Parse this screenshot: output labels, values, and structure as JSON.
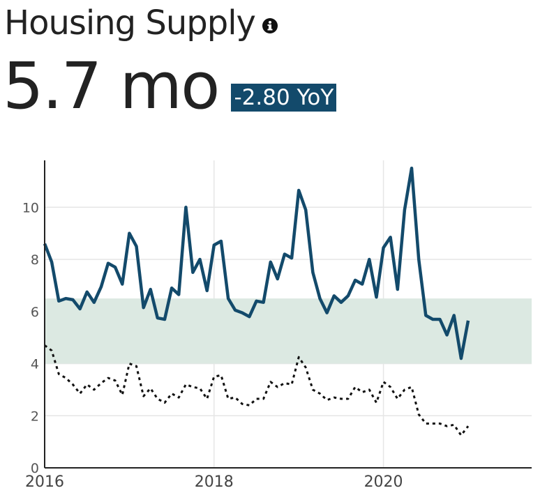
{
  "header": {
    "title": "Housing Supply",
    "info_icon": "info-circle-icon",
    "value": "5.7 mo",
    "change_badge": "-2.80 YoY"
  },
  "colors": {
    "primary_series": "#134a6b",
    "band_fill": "#dce9e2",
    "secondary_series": "#111111",
    "grid": "#e6e6e6",
    "badge_bg": "#134a6b"
  },
  "chart_data": {
    "type": "line",
    "x_range": [
      2016.0,
      2021.75
    ],
    "ylim": [
      0,
      11.8
    ],
    "y_ticks": [
      0,
      2,
      4,
      6,
      8,
      10
    ],
    "x_ticks": [
      2016,
      2018,
      2020
    ],
    "x_tick_labels": [
      "2016",
      "2018",
      "2020"
    ],
    "grid": "on",
    "band": {
      "y_low": 4.0,
      "y_high": 6.5
    },
    "series": [
      {
        "style": "solid",
        "x": [
          2016.0,
          2016.083,
          2016.167,
          2016.25,
          2016.333,
          2016.417,
          2016.5,
          2016.583,
          2016.667,
          2016.75,
          2016.833,
          2016.917,
          2017.0,
          2017.083,
          2017.167,
          2017.25,
          2017.333,
          2017.417,
          2017.5,
          2017.583,
          2017.667,
          2017.75,
          2017.833,
          2017.917,
          2018.0,
          2018.083,
          2018.167,
          2018.25,
          2018.333,
          2018.417,
          2018.5,
          2018.583,
          2018.667,
          2018.75,
          2018.833,
          2018.917,
          2019.0,
          2019.083,
          2019.167,
          2019.25,
          2019.333,
          2019.417,
          2019.5,
          2019.583,
          2019.667,
          2019.75,
          2019.833,
          2019.917,
          2020.0,
          2020.083,
          2020.167,
          2020.25,
          2020.333,
          2020.417,
          2020.5,
          2020.583,
          2020.667,
          2020.75,
          2020.833,
          2020.917,
          2021.0
        ],
        "values": [
          8.6,
          7.9,
          6.4,
          6.5,
          6.45,
          6.1,
          6.75,
          6.35,
          6.95,
          7.85,
          7.7,
          7.05,
          9.0,
          8.5,
          6.15,
          6.85,
          5.75,
          5.7,
          6.9,
          6.65,
          10.0,
          7.5,
          8.0,
          6.8,
          8.55,
          8.7,
          6.5,
          6.05,
          5.95,
          5.8,
          6.4,
          6.35,
          7.9,
          7.25,
          8.2,
          8.05,
          10.65,
          9.9,
          7.5,
          6.5,
          5.95,
          6.6,
          6.35,
          6.6,
          7.2,
          7.05,
          8.0,
          6.55,
          8.45,
          8.85,
          6.85,
          9.9,
          11.5,
          8.0,
          5.85,
          5.7,
          5.7,
          5.1,
          5.85,
          4.2,
          5.65
        ]
      },
      {
        "style": "dotted",
        "x": [
          2016.0,
          2016.083,
          2016.167,
          2016.25,
          2016.333,
          2016.417,
          2016.5,
          2016.583,
          2016.667,
          2016.75,
          2016.833,
          2016.917,
          2017.0,
          2017.083,
          2017.167,
          2017.25,
          2017.333,
          2017.417,
          2017.5,
          2017.583,
          2017.667,
          2017.75,
          2017.833,
          2017.917,
          2018.0,
          2018.083,
          2018.167,
          2018.25,
          2018.333,
          2018.417,
          2018.5,
          2018.583,
          2018.667,
          2018.75,
          2018.833,
          2018.917,
          2019.0,
          2019.083,
          2019.167,
          2019.25,
          2019.333,
          2019.417,
          2019.5,
          2019.583,
          2019.667,
          2019.75,
          2019.833,
          2019.917,
          2020.0,
          2020.083,
          2020.167,
          2020.25,
          2020.333,
          2020.417,
          2020.5,
          2020.583,
          2020.667,
          2020.75,
          2020.833,
          2020.917,
          2021.0
        ],
        "values": [
          4.7,
          4.5,
          3.6,
          3.45,
          3.2,
          2.85,
          3.2,
          3.0,
          3.25,
          3.45,
          3.35,
          2.8,
          4.0,
          3.9,
          2.75,
          3.05,
          2.65,
          2.5,
          2.85,
          2.7,
          3.2,
          3.1,
          3.05,
          2.65,
          3.5,
          3.55,
          2.65,
          2.7,
          2.45,
          2.4,
          2.65,
          2.65,
          3.3,
          3.1,
          3.25,
          3.2,
          4.25,
          3.85,
          3.0,
          2.85,
          2.6,
          2.7,
          2.65,
          2.65,
          3.1,
          2.9,
          3.0,
          2.5,
          3.3,
          3.1,
          2.65,
          3.0,
          3.1,
          2.05,
          1.7,
          1.7,
          1.7,
          1.6,
          1.65,
          1.25,
          1.6
        ]
      }
    ]
  }
}
